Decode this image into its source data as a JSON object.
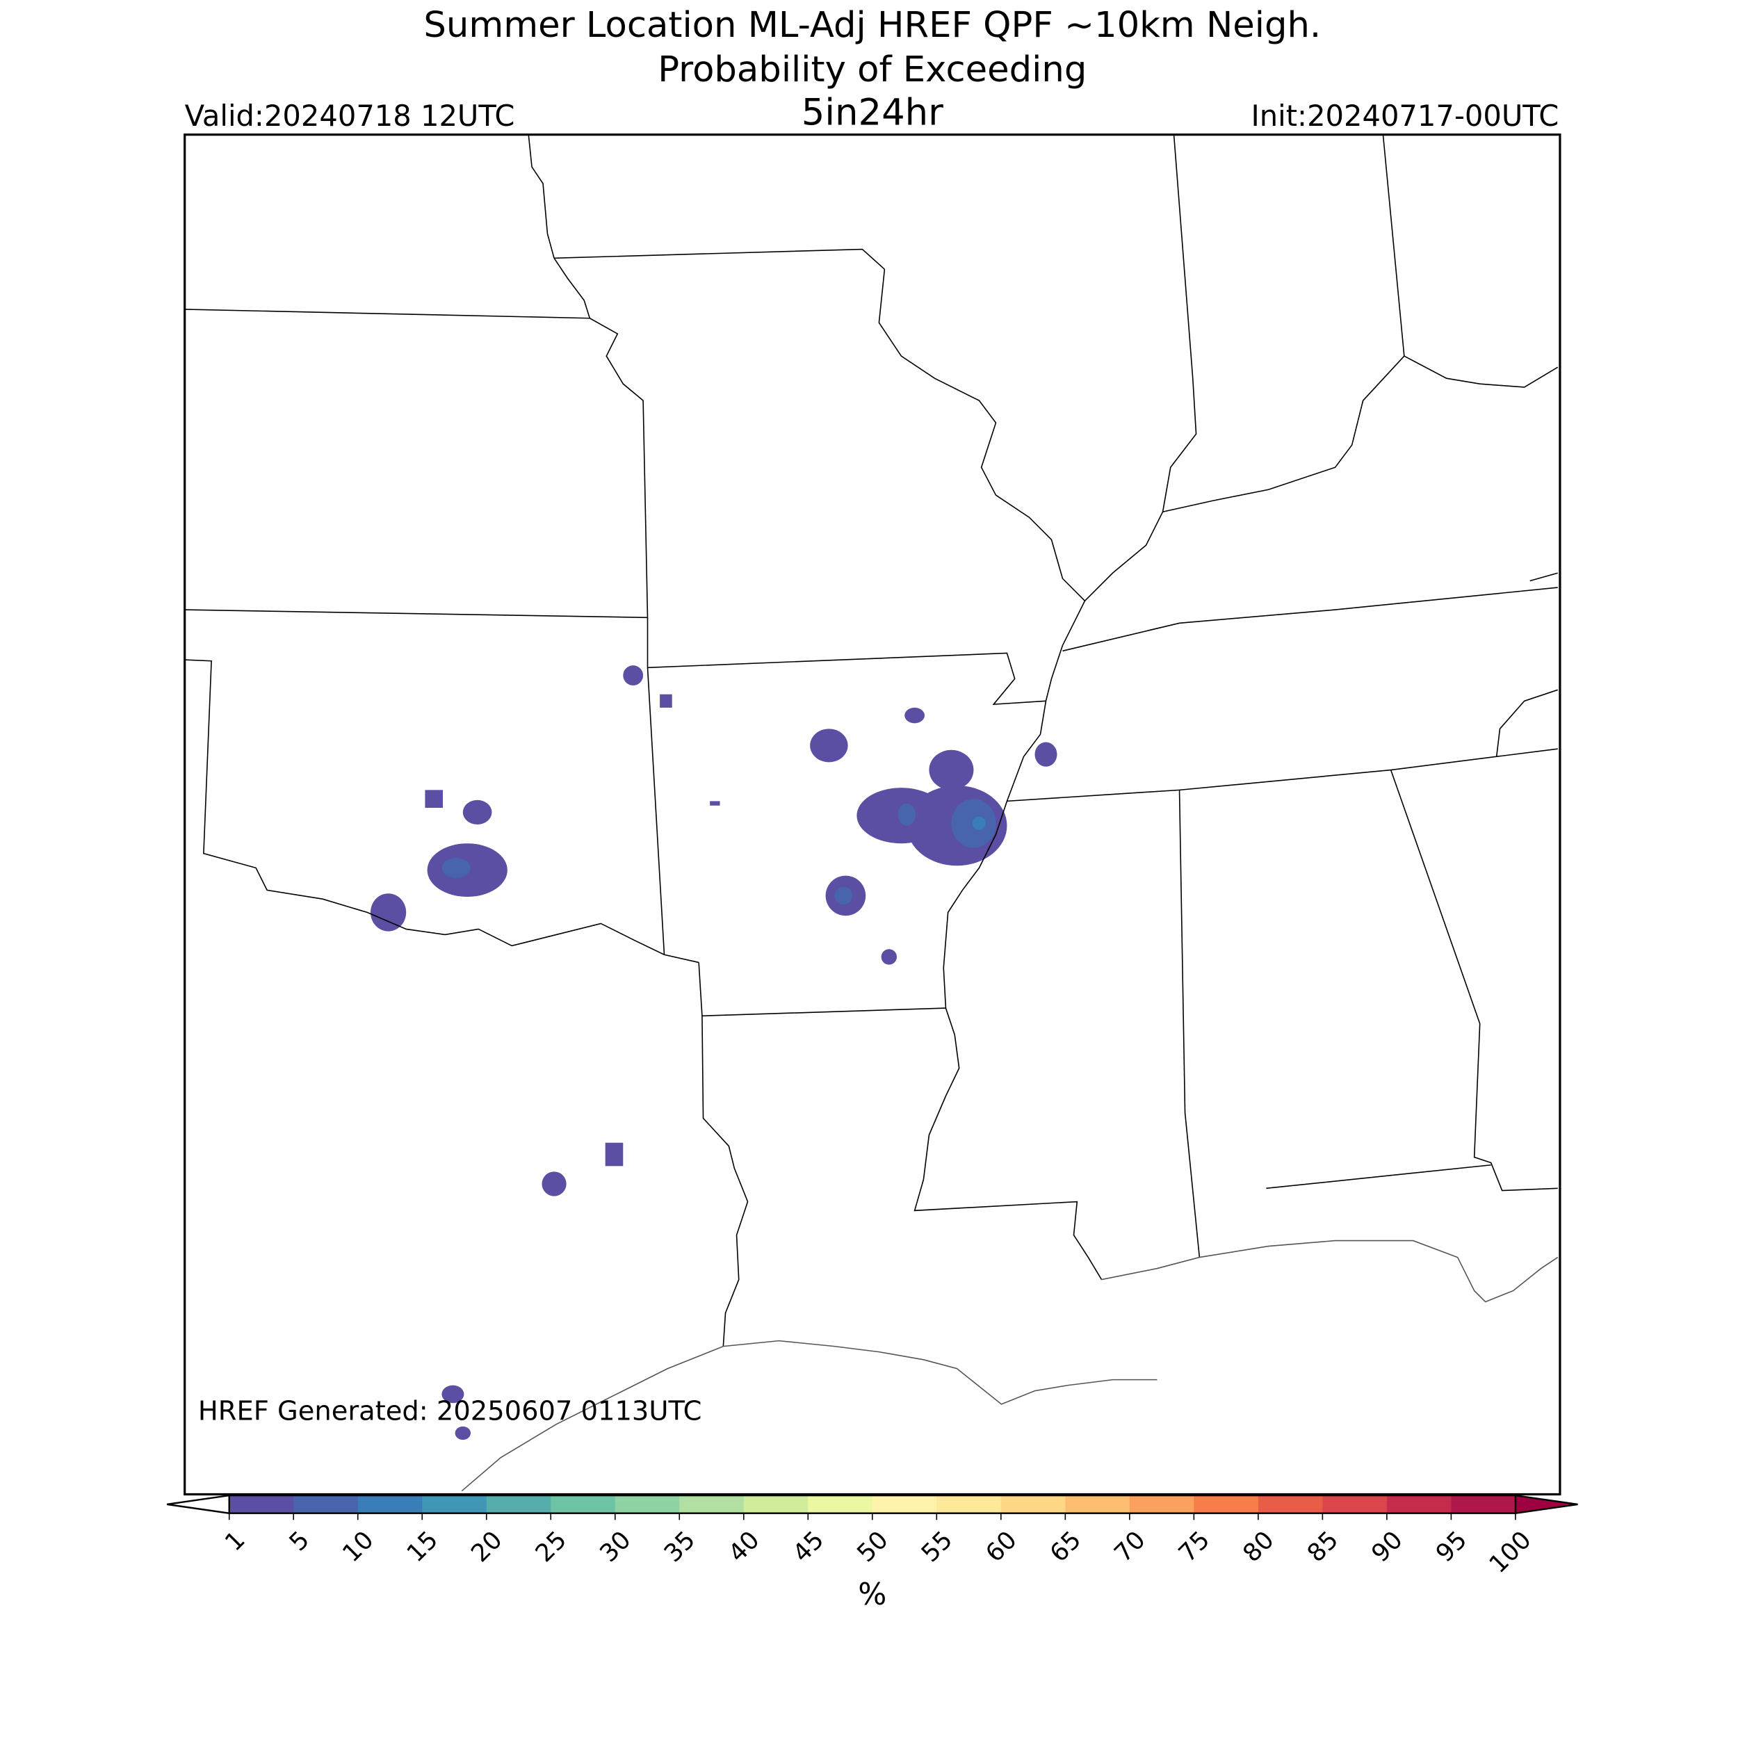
{
  "header": {
    "title_lines": [
      "Summer Location ML-Adj HREF QPF ~10km Neigh.",
      "Probability of Exceeding"
    ],
    "subtitle": "5in24hr",
    "valid": "Valid:20240718 12UTC",
    "init": "Init:20240717-00UTC"
  },
  "footer": {
    "generated": "HREF Generated: 20250607 0113UTC"
  },
  "colorbar": {
    "ticks": [
      1,
      5,
      10,
      15,
      20,
      25,
      30,
      35,
      40,
      45,
      50,
      55,
      60,
      65,
      70,
      75,
      80,
      85,
      90,
      95,
      100
    ],
    "colors": [
      "#5b4fa3",
      "#4764ad",
      "#3a7eb8",
      "#3f96b7",
      "#55aeac",
      "#6cc4a4",
      "#8fd2a4",
      "#b2e0a2",
      "#d1ed9c",
      "#ecf7a1",
      "#fff2aa",
      "#fee89a",
      "#fed884",
      "#fdbf6f",
      "#fca05d",
      "#f67e4b",
      "#e95c47",
      "#da464c",
      "#c52c4b",
      "#b0174a"
    ],
    "under_color": "#ffffff",
    "over_color": "#9e0142",
    "label": "%"
  }
}
